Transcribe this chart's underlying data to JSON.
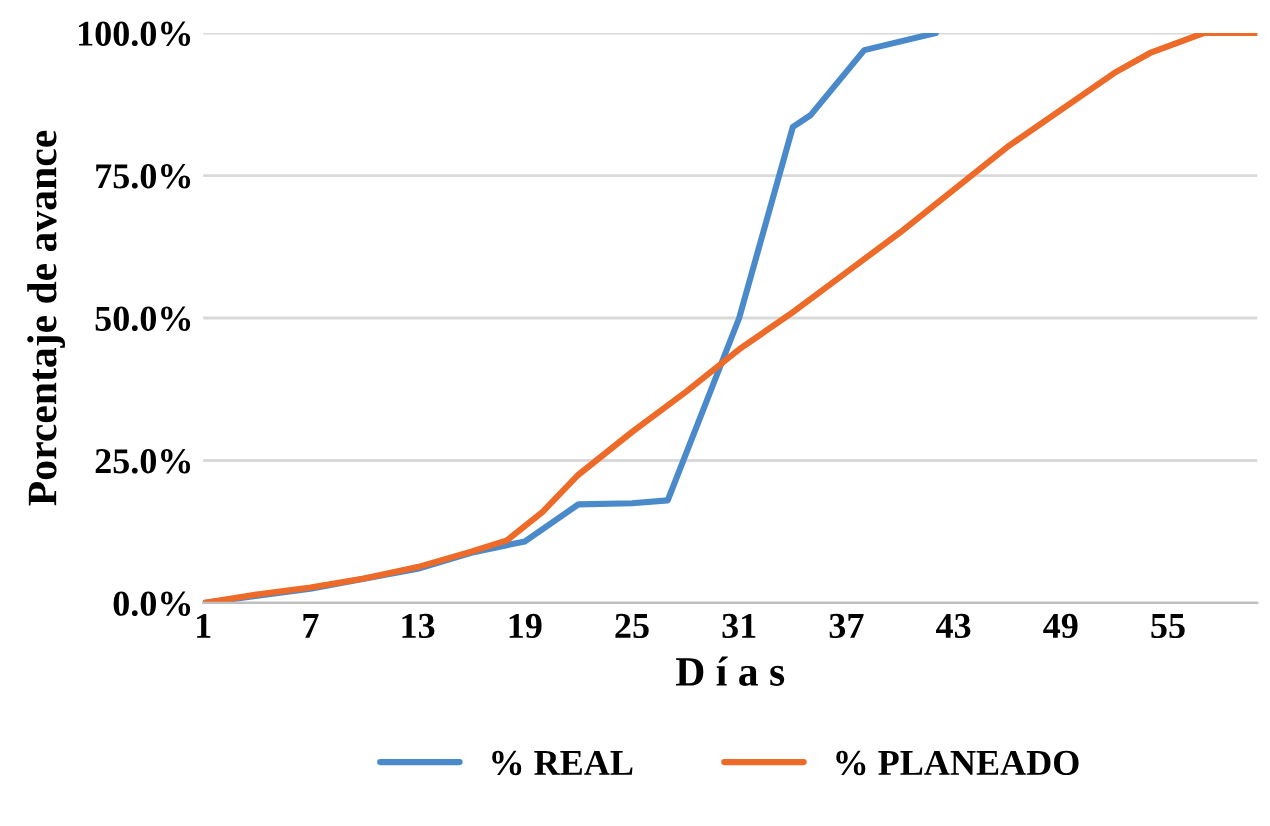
{
  "chart_data": {
    "type": "line",
    "xlabel": "D í a s",
    "ylabel": "Porcentaje de avance",
    "xlim": [
      1,
      60
    ],
    "xticks": [
      1,
      7,
      13,
      19,
      25,
      31,
      37,
      43,
      49,
      55
    ],
    "ylim": [
      0,
      100
    ],
    "yticks": [
      {
        "value": 0,
        "label": "0.0%"
      },
      {
        "value": 25,
        "label": "25.0%"
      },
      {
        "value": 50,
        "label": "50.0%"
      },
      {
        "value": 75,
        "label": "75.0%"
      },
      {
        "value": 100,
        "label": "100.0%"
      }
    ],
    "grid": "y",
    "legend": "bottom",
    "marker": "none",
    "line_style": "solid",
    "series": [
      {
        "name": "% REAL",
        "color": "#4a8acb",
        "x": [
          1,
          7,
          13,
          16,
          19,
          22,
          25,
          27,
          31,
          34,
          35,
          38,
          42
        ],
        "values": [
          0,
          2.5,
          6,
          8.8,
          10.8,
          17.3,
          17.5,
          18,
          50,
          83.5,
          85.6,
          97,
          100
        ]
      },
      {
        "name": "% PLANEADO",
        "color": "#ed6a28",
        "x": [
          1,
          4,
          7,
          10,
          13,
          16,
          18,
          20,
          22,
          25,
          28,
          31,
          34,
          37,
          40,
          43,
          46,
          49,
          52,
          54,
          57,
          60
        ],
        "values": [
          0,
          1.5,
          2.7,
          4.3,
          6.3,
          9,
          11,
          16,
          22.5,
          30,
          37,
          44.5,
          51,
          58,
          65,
          72.5,
          80,
          86.5,
          93,
          96.5,
          100,
          100
        ]
      }
    ]
  }
}
